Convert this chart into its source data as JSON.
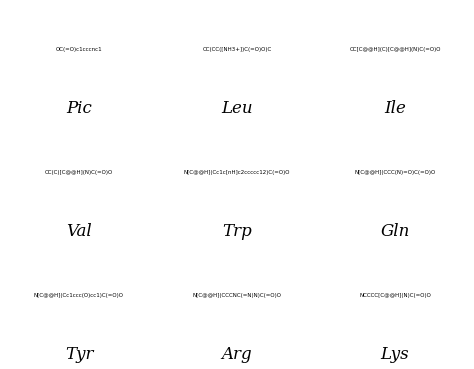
{
  "figsize": [
    4.74,
    3.69
  ],
  "dpi": 100,
  "background": "#ffffff",
  "compounds": [
    {
      "name": "Pic",
      "smiles": "OC(=O)c1cccnc1",
      "label": "Pic",
      "row": 0,
      "col": 0
    },
    {
      "name": "Leu",
      "smiles": "CC(CC([NH3+])C(=O)O)C",
      "label": "Leu",
      "row": 0,
      "col": 1
    },
    {
      "name": "Ile",
      "smiles": "CC[C@@H](C)[C@@H](N)C(=O)O",
      "label": "Ile",
      "row": 0,
      "col": 2
    },
    {
      "name": "Val",
      "smiles": "CC(C)[C@@H](N)C(=O)O",
      "label": "Val",
      "row": 1,
      "col": 0
    },
    {
      "name": "Trp",
      "smiles": "N[C@@H](Cc1c[nH]c2ccccc12)C(=O)O",
      "label": "Trp",
      "row": 1,
      "col": 1
    },
    {
      "name": "Gln",
      "smiles": "N[C@@H](CCC(N)=O)C(=O)O",
      "label": "Gln",
      "row": 1,
      "col": 2
    },
    {
      "name": "Tyr",
      "smiles": "N[C@@H](Cc1ccc(O)cc1)C(=O)O",
      "label": "Tyr",
      "row": 2,
      "col": 0
    },
    {
      "name": "Arg",
      "smiles": "N[C@@H](CCCNC(=N)N)C(=O)O",
      "label": "Arg",
      "row": 2,
      "col": 1
    },
    {
      "name": "Lys",
      "smiles": "NCCCC[C@@H](N)C(=O)O",
      "label": "Lys",
      "row": 2,
      "col": 2
    }
  ],
  "grid_rows": 3,
  "grid_cols": 3,
  "label_fontsize": 12,
  "border_color": "#cccccc",
  "border_lw": 0.5
}
